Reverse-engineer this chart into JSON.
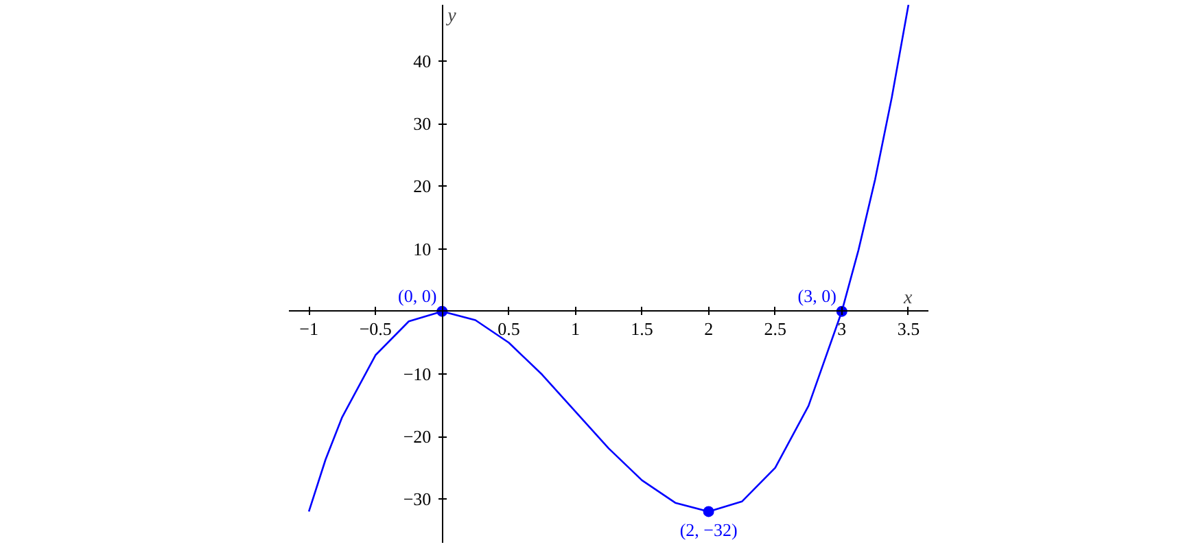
{
  "chart_data": {
    "type": "line",
    "xlabel": "x",
    "ylabel": "y",
    "xlim": [
      -1.15,
      3.65
    ],
    "ylim": [
      -37,
      49
    ],
    "xticks": [
      {
        "value": -1,
        "label": "−1"
      },
      {
        "value": -0.5,
        "label": "−0.5"
      },
      0.5,
      1,
      1.5,
      2,
      2.5,
      3,
      3.5
    ],
    "yticks": [
      {
        "value": -30,
        "label": "−30"
      },
      {
        "value": -20,
        "label": "−20"
      },
      {
        "value": -10,
        "label": "−10"
      },
      10,
      20,
      30,
      40
    ],
    "grid": false,
    "marker": "none",
    "line_style": "solid",
    "series": [
      {
        "color": "#0000ff",
        "x": [
          -1,
          -0.875,
          -0.75,
          -0.5,
          -0.25,
          0,
          0.25,
          0.5,
          0.75,
          1,
          1.25,
          1.5,
          1.75,
          2,
          2.25,
          2.5,
          2.75,
          3,
          3.125,
          3.25,
          3.375,
          3.5
        ],
        "values": [
          -32,
          -23.7,
          -16.9,
          -7,
          -1.6,
          0,
          -1.4,
          -5,
          -10.1,
          -16,
          -21.9,
          -27,
          -30.6,
          -32,
          -30.4,
          -25,
          -15.1,
          0,
          9.8,
          21.1,
          34.2,
          49
        ]
      },
      {
        "type": "scatter",
        "color": "#0000ff",
        "marker": "circle",
        "x": [
          0,
          3,
          2
        ],
        "values": [
          0,
          0,
          -32
        ]
      }
    ],
    "annotations": [
      {
        "text": "(0, 0)",
        "x": 0,
        "y": 0
      },
      {
        "text": "(3, 0)",
        "x": 3,
        "y": 0
      },
      {
        "text": "(2, −32)",
        "x": 2,
        "y": -32
      }
    ]
  }
}
